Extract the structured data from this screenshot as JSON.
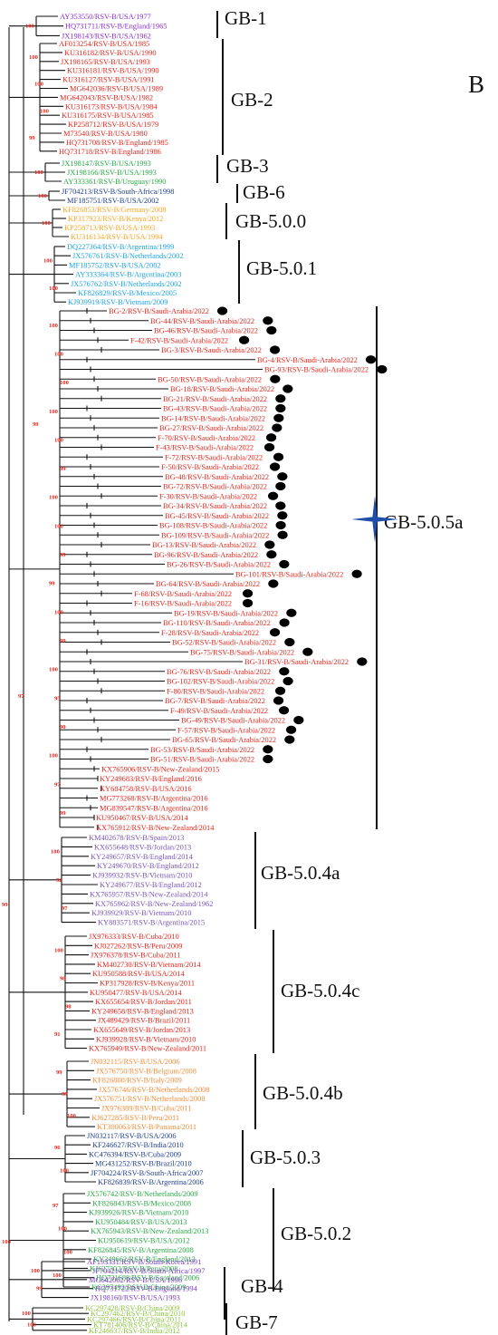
{
  "panel_label": "B",
  "colors": {
    "GB-1": "#8b2fc9",
    "GB-2": "#e3261d",
    "GB-3": "#28a745",
    "GB-6": "#1f3e8c",
    "GB-5.0.0": "#f5a623",
    "GB-5.0.1": "#1ca3df",
    "GB-5.0.5a": "#e3261d",
    "GB-5.0.4a": "#7a56b8",
    "GB-5.0.4c": "#e3261d",
    "GB-5.0.4b": "#f28c38",
    "GB-5.0.3": "#1f3e8c",
    "GB-5.0.2": "#28a745",
    "GB-4": "#7a3fc2",
    "GB-7": "#8dc43f",
    "marker": "#000000",
    "star": "#1e4ea8",
    "bootstrap": "#e3261d"
  },
  "clades": [
    {
      "name": "GB-1",
      "leaves": [
        "AY353550/RSV-B/USA/1977",
        "HQ731711/RSV-B/England/1965",
        "JX198143/RSV-B/USA/1962"
      ]
    },
    {
      "name": "GB-2",
      "leaves": [
        "AF013254/RSV-B/USA/1985",
        "KU316182/RSV-B/USA/1990",
        "JX198165/RSV-B/USA/1993",
        "KU316181/RSV-B/USA/1990",
        "KU316127/RSV-B/USA/1991",
        "MG642036/RSV-B/USA/1989",
        "MG642043/RSV-B/USA/1982",
        "KU316173/RSV-B/USA/1984",
        "KU316175/RSV-B/USA/1985",
        "KP258712/RSV-B/USA/1979",
        "M73540/RSV-B/USA/1980",
        "HQ731708/RSV-B/England/1985",
        "HQ731718/RSV-B/England/1986"
      ]
    },
    {
      "name": "GB-3",
      "leaves": [
        "JX198147/RSV-B/USA/1993",
        "JX198166/RSV-B/USA/1993",
        "AY333361/RSV-B/Uruguay/1990"
      ]
    },
    {
      "name": "GB-6",
      "leaves": [
        "JF704213/RSV-B/South-Africa/1998",
        "MF185751/RSV-B/USA/2002"
      ]
    },
    {
      "name": "GB-5.0.0",
      "leaves": [
        "KF826853/RSV-B/Germany/2008",
        "KP317923/RSV-B/Kenya/2012",
        "KP258713/RSV-B/USA/1993",
        "KU316134/RSV-B/USA/1994"
      ]
    },
    {
      "name": "GB-5.0.1",
      "leaves": [
        "DQ227364/RSV-B/Argentina/1999",
        "JX576761/RSV-B/Netherlands/2002",
        "MF185752/RSV-B/USA/2002",
        "AY333364/RSV-B/Argentina/2003",
        "JX576762/RSV-B/Netherlands/2002",
        "KF826829/RSV-B/Mexico/2005",
        "KJ939919/RSV-B/Vietnam/2009"
      ]
    },
    {
      "name": "GB-5.0.5a",
      "leaves": [
        "BG-2/RSV-B/Saudi-Arabia/2022",
        "BG-44/RSV-B/Saudi-Arabia/2022",
        "BG-46/RSV-B/Saudi-Arabia/2022",
        "F-42/RSV-B/Saudi-Arabia/2022",
        "BG-3/RSV-B/Saudi-Arabia/2022",
        "BG-4/RSV-B/Saudi-Arabia/2022",
        "BG-93/RSV-B/Saudi-Arabia/2022",
        "BG-50/RSV-B/Saudi-Arabia/2022",
        "BG-18/RSV-B/Saudi-Arabia/2022",
        "BG-21/RSV-B/Saudi-Arabia/2022",
        "BG-43/RSV-B/Saudi-Arabia/2022",
        "BG-14/RSV-B/Saudi-Arabia/2022",
        "BG-27/RSV-B/Saudi-Arabia/2022",
        "F-70/RSV-B/Saudi-Arabia/2022",
        "F-43/RSV-B/Saudi-Arabia/2022",
        "F-72/RSV-B/Saudi-Arabia/2022",
        "F-50/RSV-B/Saudi-Arabia/2022",
        "BG-48/RSV-B/Saudi-Arabia/2022",
        "BG-72/RSV-B/Saudi-Arabia/2022",
        "F-30/RSV-B/Saudi-Arabia/2022",
        "BG-34/RSV-B/Saudi-Arabia/2022",
        "BG-45/RSV-B/Saudi-Arabia/2022",
        "BG-108/RSV-B/Saudi-Arabia/2022",
        "BG-109/RSV-B/Saudi-Arabia/2022",
        "BG-13/RSV-B/Saudi-Arabia/2022",
        "BG-96/RSV-B/Saudi-Arabia/2022",
        "BG-26/RSV-B/Saudi-Arabia/2022",
        "BG-101/RSV-B/Saudi-Arabia/2022",
        "BG-64/RSV-B/Saudi-Arabia/2022",
        "F-68/RSV-B/Saudi-Arabia/2022",
        "F-16/RSV-B/Saudi-Arabia/2022",
        "BG-19/RSV-B/Saudi-Arabia/2022",
        "BG-110/RSV-B/Saudi-Arabia/2022",
        "F-28/RSV-B/Saudi-Arabia/2022",
        "BG-52/RSV-B/Saudi-Arabia/2022",
        "BG-75/RSV-B/Saudi-Arabia/2022",
        "BG-31/RSV-B/Saudi-Arabia/2022",
        "BG-76/RSV-B/Saudi-Arabia/2022",
        "BG-102/RSV-B/Saudi-Arabia/2022",
        "F-80/RSV-B/Saudi-Arabia/2022",
        "BG-7/RSV-B/Saudi-Arabia/2022",
        "F-49/RSV-B/Saudi-Arabia/2022",
        "BG-49/RSV-B/Saudi-Arabia/2022",
        "F-57/RSV-B/Saudi-Arabia/2022",
        "BG-65/RSV-B/Saudi-Arabia/2022",
        "BG-53/RSV-B/Saudi-Arabia/2022",
        "BG-51/RSV-B/Saudi-Arabia/2022",
        "KX765906/RSV-B/New-Zealand/2015",
        "KY249683/RSV-B/England/2016",
        "KY684758/RSV-B/USA/2016",
        "MG773268/RSV-B/Argentina/2016",
        "MG839547/RSV-B/Argentina/2016",
        "KU950467/RSV-B/USA/2014",
        "KX765912/RSV-B/New-Zealand/2014"
      ]
    },
    {
      "name": "GB-5.0.4a",
      "leaves": [
        "KM402678/RSV-B/Spain/2013",
        "KX655648/RSV-B/Jordan/2013",
        "KY249657/RSV-B/England/2014",
        "KY249670/RSV-B/England/2012",
        "KJ939932/RSV-B/Vietnam/2010",
        "KY249677/RSV-B/England/2012",
        "KX765957/RSV-B/New-Zealand/2014",
        "KX765962/RSV-B/New-Zealand/1962",
        "KJ939929/RSV-B/Vietnam/2010",
        "KY883571/RSV-B/Argentina/2015"
      ]
    },
    {
      "name": "GB-5.0.4c",
      "leaves": [
        "JX976333/RSV-B/Cuba/2010",
        "KJ027262/RSV-B/Peru/2009",
        "JX976378/RSV-B/Cuba/2011",
        "KM402730/RSV-B/Vietnam/2014",
        "KU950588/RSV-B/USA/2014",
        "KP317928/RSV-B/Kenya/2011",
        "KU950477/RSV-B/USA/2014",
        "KX655654/RSV-B/Jordan/2011",
        "KY249658/RSV-B/England/2013",
        "JX489429/RSV-B/Brazil/2011",
        "KX655649/RSV-B/Jordan/2013",
        "KJ939928/RSV-B/Vietnam/2010",
        "KX765949/RSV-B/New-Zealand/2011"
      ]
    },
    {
      "name": "GB-5.0.4b",
      "leaves": [
        "JN032115/RSV-B/USA/2006",
        "JX576750/RSV-B/Belgium/2008",
        "KF826800/RSV-B/Italy/2009",
        "JX576746/RSV-B/Netherlands/2008",
        "JX576751/RSV-B/Netherlands/2008",
        "JX976389/RSV-B/Cuba/2011",
        "KJ627285/RSV-B/Peru/2011",
        "KT300063/RSV-B/Panama/2011"
      ]
    },
    {
      "name": "GB-5.0.3",
      "leaves": [
        "JN032117/RSV-B/USA/2006",
        "KF246627/RSV-B/India/2010",
        "KC476394/RSV-B/Cuba/2009",
        "MG431252/RSV-B/Brazil/2010",
        "JF704224/RSV-B/South-Africa/2007",
        "KF826839/RSV-B/Argentina/2006"
      ]
    },
    {
      "name": "GB-5.0.2",
      "leaves": [
        "JX576742/RSV-B/Netherlands/2009",
        "KF826843/RSV-B/Mexico/2008",
        "KJ939926/RSV-B/Vietnam/2010",
        "KU950484/RSV-B/USA/2013",
        "KX765943/RSV-B/New-Zealand/2013",
        "KU950619/RSV-B/USA/2012",
        "KF826845/RSV-B/Argentina/2008",
        "KY249662/RSV-B/England/2013",
        "KJ627302/RSV-B/Peru/2008",
        "HQ731688/RSV-B/Scotland/2006",
        "KC297492/RSV-B/China/2009"
      ]
    },
    {
      "name": "GB-4",
      "leaves": [
        "AF193331/RSV-B/South-Korea/1991",
        "JF704214/RSV-B/South-Africa/1997",
        "MG642062/RSV-B/USA/1996",
        "HQ731722/RSV-B/England/1994",
        "JX198160/RSV-B/USA/1993"
      ]
    },
    {
      "name": "GB-7",
      "leaves": [
        "KC297428/RSV-B/China/2009",
        "KC297462/RSV-B/China/2010",
        "KC297466/RSV-B/China/2011",
        "KT781406/RSV-B/China/2014",
        "KF246637/RSV-B/India/2012"
      ]
    }
  ],
  "bootstrap_values": [
    "100",
    "100",
    "100",
    "100",
    "99",
    "100",
    "100",
    "100",
    "100",
    "100",
    "100",
    "100",
    "100",
    "100",
    "100",
    "99",
    "100",
    "100",
    "99",
    "99",
    "100",
    "99",
    "100",
    "95",
    "90",
    "100",
    "97",
    "99",
    "100",
    "92",
    "97",
    "100",
    "98",
    "98",
    "91",
    "99",
    "99",
    "100",
    "96",
    "100",
    "97",
    "100",
    "100",
    "100",
    "100",
    "99",
    "100",
    "100",
    "99",
    "100",
    "97",
    "99",
    "99",
    "100",
    "100",
    "99",
    "91",
    "99",
    "98",
    "100",
    "100",
    "97"
  ]
}
